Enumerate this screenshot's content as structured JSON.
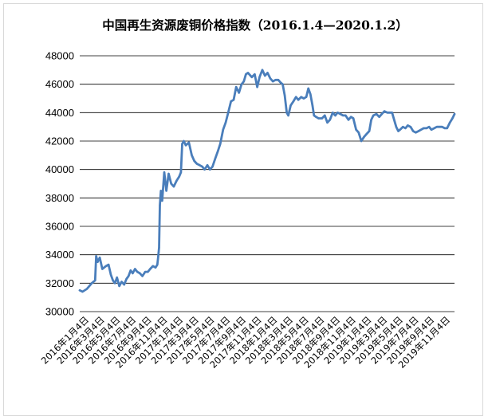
{
  "chart_data": {
    "type": "line",
    "title": "中国再生资源废铜价格指数（2016.1.4—2020.1.2）",
    "xlabel": "",
    "ylabel": "",
    "ylim": [
      30000,
      48000
    ],
    "y_ticks": [
      30000,
      32000,
      34000,
      36000,
      38000,
      40000,
      42000,
      44000,
      46000,
      48000
    ],
    "x_tick_labels": [
      "2016年1月4日",
      "2016年3月4日",
      "2016年5月4日",
      "2016年7月4日",
      "2016年9月4日",
      "2016年11月4日",
      "2017年1月4日",
      "2017年3月4日",
      "2017年5月4日",
      "2017年7月4日",
      "2017年9月4日",
      "2017年11月4日",
      "2018年1月4日",
      "2018年3月4日",
      "2018年5月4日",
      "2018年7月4日",
      "2018年9月4日",
      "2018年11月4日",
      "2019年1月4日",
      "2019年3月4日",
      "2019年5月4日",
      "2019年7月4日",
      "2019年9月4日",
      "2019年11月4日"
    ],
    "x_range": [
      "2016-01-04",
      "2020-01-02"
    ],
    "grid": true,
    "legend": "none",
    "series_color": "#4a7ebb",
    "points": [
      [
        "2016-01-04",
        31500
      ],
      [
        "2016-01-15",
        31400
      ],
      [
        "2016-02-01",
        31600
      ],
      [
        "2016-02-20",
        32000
      ],
      [
        "2016-03-04",
        32200
      ],
      [
        "2016-03-08",
        33900
      ],
      [
        "2016-03-14",
        33500
      ],
      [
        "2016-03-22",
        33800
      ],
      [
        "2016-04-01",
        33000
      ],
      [
        "2016-04-15",
        33200
      ],
      [
        "2016-04-25",
        33300
      ],
      [
        "2016-05-04",
        32600
      ],
      [
        "2016-05-12",
        32200
      ],
      [
        "2016-05-20",
        32000
      ],
      [
        "2016-05-28",
        32400
      ],
      [
        "2016-06-06",
        31800
      ],
      [
        "2016-06-15",
        32100
      ],
      [
        "2016-06-25",
        31900
      ],
      [
        "2016-07-04",
        32300
      ],
      [
        "2016-07-12",
        32500
      ],
      [
        "2016-07-20",
        32900
      ],
      [
        "2016-07-28",
        32700
      ],
      [
        "2016-08-06",
        33000
      ],
      [
        "2016-08-15",
        32800
      ],
      [
        "2016-08-25",
        32700
      ],
      [
        "2016-09-04",
        32500
      ],
      [
        "2016-09-15",
        32800
      ],
      [
        "2016-09-25",
        32800
      ],
      [
        "2016-10-04",
        33000
      ],
      [
        "2016-10-15",
        33200
      ],
      [
        "2016-10-25",
        33100
      ],
      [
        "2016-11-01",
        33300
      ],
      [
        "2016-11-04",
        33800
      ],
      [
        "2016-11-08",
        34500
      ],
      [
        "2016-11-11",
        37500
      ],
      [
        "2016-11-15",
        38500
      ],
      [
        "2016-11-20",
        37800
      ],
      [
        "2016-11-28",
        39800
      ],
      [
        "2016-12-06",
        38500
      ],
      [
        "2016-12-15",
        39700
      ],
      [
        "2016-12-25",
        39000
      ],
      [
        "2017-01-04",
        38800
      ],
      [
        "2017-01-15",
        39200
      ],
      [
        "2017-01-25",
        39500
      ],
      [
        "2017-02-01",
        39800
      ],
      [
        "2017-02-06",
        41800
      ],
      [
        "2017-02-12",
        42000
      ],
      [
        "2017-02-20",
        41700
      ],
      [
        "2017-03-04",
        41900
      ],
      [
        "2017-03-15",
        41000
      ],
      [
        "2017-03-25",
        40600
      ],
      [
        "2017-04-04",
        40400
      ],
      [
        "2017-04-15",
        40300
      ],
      [
        "2017-04-25",
        40200
      ],
      [
        "2017-05-04",
        40000
      ],
      [
        "2017-05-15",
        40300
      ],
      [
        "2017-05-25",
        40000
      ],
      [
        "2017-06-04",
        40200
      ],
      [
        "2017-06-15",
        40800
      ],
      [
        "2017-06-25",
        41300
      ],
      [
        "2017-07-04",
        41800
      ],
      [
        "2017-07-15",
        42800
      ],
      [
        "2017-07-25",
        43300
      ],
      [
        "2017-08-04",
        44000
      ],
      [
        "2017-08-15",
        44800
      ],
      [
        "2017-08-25",
        44900
      ],
      [
        "2017-09-04",
        45800
      ],
      [
        "2017-09-15",
        45400
      ],
      [
        "2017-09-25",
        46000
      ],
      [
        "2017-10-04",
        46200
      ],
      [
        "2017-10-12",
        46700
      ],
      [
        "2017-10-20",
        46800
      ],
      [
        "2017-11-04",
        46500
      ],
      [
        "2017-11-15",
        46700
      ],
      [
        "2017-11-25",
        45800
      ],
      [
        "2017-12-04",
        46500
      ],
      [
        "2017-12-15",
        47000
      ],
      [
        "2017-12-25",
        46600
      ],
      [
        "2018-01-04",
        46800
      ],
      [
        "2018-01-15",
        46400
      ],
      [
        "2018-01-25",
        46200
      ],
      [
        "2018-02-04",
        46300
      ],
      [
        "2018-02-15",
        46300
      ],
      [
        "2018-02-25",
        46100
      ],
      [
        "2018-03-04",
        46000
      ],
      [
        "2018-03-12",
        45200
      ],
      [
        "2018-03-20",
        44000
      ],
      [
        "2018-03-26",
        43800
      ],
      [
        "2018-04-04",
        44500
      ],
      [
        "2018-04-15",
        44800
      ],
      [
        "2018-04-25",
        45100
      ],
      [
        "2018-05-04",
        44900
      ],
      [
        "2018-05-15",
        45100
      ],
      [
        "2018-05-25",
        45000
      ],
      [
        "2018-06-04",
        45100
      ],
      [
        "2018-06-12",
        45700
      ],
      [
        "2018-06-20",
        45300
      ],
      [
        "2018-06-28",
        44500
      ],
      [
        "2018-07-04",
        43800
      ],
      [
        "2018-07-12",
        43700
      ],
      [
        "2018-07-22",
        43600
      ],
      [
        "2018-08-04",
        43600
      ],
      [
        "2018-08-15",
        43800
      ],
      [
        "2018-08-25",
        43300
      ],
      [
        "2018-09-04",
        43500
      ],
      [
        "2018-09-15",
        44000
      ],
      [
        "2018-09-25",
        43800
      ],
      [
        "2018-10-04",
        44000
      ],
      [
        "2018-10-15",
        43900
      ],
      [
        "2018-10-25",
        43800
      ],
      [
        "2018-11-04",
        43800
      ],
      [
        "2018-11-15",
        43500
      ],
      [
        "2018-11-25",
        43700
      ],
      [
        "2018-12-04",
        43600
      ],
      [
        "2018-12-15",
        42800
      ],
      [
        "2018-12-25",
        42600
      ],
      [
        "2019-01-04",
        42000
      ],
      [
        "2019-01-15",
        42300
      ],
      [
        "2019-01-25",
        42500
      ],
      [
        "2019-02-04",
        42700
      ],
      [
        "2019-02-12",
        43500
      ],
      [
        "2019-02-20",
        43800
      ],
      [
        "2019-03-04",
        43900
      ],
      [
        "2019-03-15",
        43700
      ],
      [
        "2019-03-25",
        43900
      ],
      [
        "2019-04-04",
        44100
      ],
      [
        "2019-04-15",
        44000
      ],
      [
        "2019-04-25",
        44000
      ],
      [
        "2019-05-04",
        44000
      ],
      [
        "2019-05-12",
        43500
      ],
      [
        "2019-05-20",
        43000
      ],
      [
        "2019-05-28",
        42700
      ],
      [
        "2019-06-04",
        42800
      ],
      [
        "2019-06-15",
        43000
      ],
      [
        "2019-06-25",
        42900
      ],
      [
        "2019-07-04",
        43100
      ],
      [
        "2019-07-15",
        43000
      ],
      [
        "2019-07-25",
        42700
      ],
      [
        "2019-08-04",
        42600
      ],
      [
        "2019-08-15",
        42700
      ],
      [
        "2019-08-25",
        42800
      ],
      [
        "2019-09-04",
        42900
      ],
      [
        "2019-09-15",
        42900
      ],
      [
        "2019-09-25",
        43000
      ],
      [
        "2019-10-04",
        42800
      ],
      [
        "2019-10-15",
        42900
      ],
      [
        "2019-10-25",
        43000
      ],
      [
        "2019-11-04",
        43000
      ],
      [
        "2019-11-15",
        43000
      ],
      [
        "2019-11-25",
        42900
      ],
      [
        "2019-12-04",
        42900
      ],
      [
        "2019-12-15",
        43300
      ],
      [
        "2019-12-25",
        43600
      ],
      [
        "2020-01-02",
        43900
      ]
    ]
  }
}
